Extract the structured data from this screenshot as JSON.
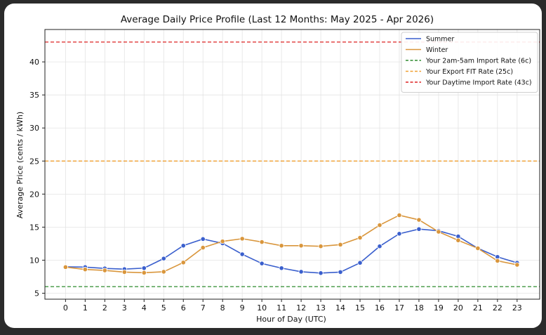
{
  "chart_data": {
    "type": "line",
    "title": "Average Daily Price Profile (Last 12 Months: May 2025 - Apr 2026)",
    "xlabel": "Hour of Day (UTC)",
    "ylabel": "Average Price (cents / kWh)",
    "categories": [
      0,
      1,
      2,
      3,
      4,
      5,
      6,
      7,
      8,
      9,
      10,
      11,
      12,
      13,
      14,
      15,
      16,
      17,
      18,
      19,
      20,
      21,
      22,
      23
    ],
    "x_ticks": [
      0,
      1,
      2,
      3,
      4,
      5,
      6,
      7,
      8,
      9,
      10,
      11,
      12,
      13,
      14,
      15,
      16,
      17,
      18,
      19,
      20,
      21,
      22,
      23
    ],
    "y_ticks": [
      5,
      10,
      15,
      20,
      25,
      30,
      35,
      40
    ],
    "xlim": [
      -1.05,
      24.15
    ],
    "ylim": [
      4.1,
      44.9
    ],
    "grid": true,
    "legend_position": "top-right",
    "series": [
      {
        "name": "Summer",
        "color": "#3a5fcd",
        "values": [
          9.0,
          8.95,
          8.75,
          8.65,
          8.8,
          10.25,
          12.2,
          13.2,
          12.55,
          10.9,
          9.5,
          8.8,
          8.25,
          8.05,
          8.2,
          9.6,
          12.1,
          14.0,
          14.7,
          14.45,
          13.6,
          11.8,
          10.5,
          9.6
        ]
      },
      {
        "name": "Winter",
        "color": "#d9963c",
        "values": [
          8.95,
          8.6,
          8.45,
          8.2,
          8.1,
          8.25,
          9.65,
          11.9,
          12.85,
          13.25,
          12.75,
          12.2,
          12.2,
          12.1,
          12.35,
          13.4,
          15.3,
          16.8,
          16.1,
          14.3,
          13.0,
          11.8,
          9.9,
          9.3
        ]
      }
    ],
    "reference_lines": [
      {
        "name": "Your 2am-5am Import Rate (6c)",
        "value": 6,
        "color": "#2e8b2e"
      },
      {
        "name": "Your Export FIT Rate (25c)",
        "value": 25,
        "color": "#f0a030"
      },
      {
        "name": "Your Daytime Import Rate (43c)",
        "value": 43,
        "color": "#dd2222"
      }
    ]
  }
}
